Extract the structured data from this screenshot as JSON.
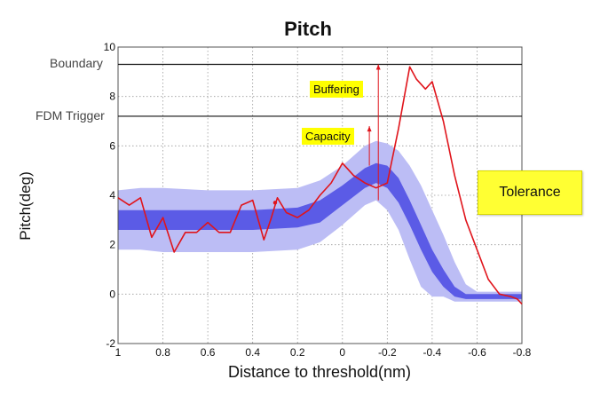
{
  "chart_data": {
    "type": "line",
    "title": "Pitch",
    "xlabel": "Distance to threshold(nm)",
    "ylabel": "Pitch(deg)",
    "x_reversed": true,
    "xlim": [
      1,
      -0.8
    ],
    "ylim": [
      -2,
      10
    ],
    "x_ticks": [
      "1",
      "0.8",
      "0.6",
      "0.4",
      "0.2",
      "0",
      "-0.2",
      "-0.4",
      "-0.6",
      "-0.8"
    ],
    "y_ticks": [
      "-2",
      "0",
      "2",
      "4",
      "6",
      "8",
      "10"
    ],
    "grid": true,
    "series": [
      {
        "color": "#e0141b",
        "x": [
          1,
          0.95,
          0.9,
          0.85,
          0.8,
          0.75,
          0.7,
          0.65,
          0.6,
          0.55,
          0.5,
          0.45,
          0.4,
          0.35,
          0.32,
          0.29,
          0.25,
          0.2,
          0.15,
          0.1,
          0.05,
          0,
          -0.05,
          -0.1,
          -0.15,
          -0.2,
          -0.25,
          -0.3,
          -0.33,
          -0.37,
          -0.4,
          -0.45,
          -0.5,
          -0.55,
          -0.6,
          -0.65,
          -0.7,
          -0.75,
          -0.78,
          -0.8
        ],
        "y": [
          3.9,
          3.6,
          3.9,
          2.3,
          3.1,
          1.7,
          2.5,
          2.5,
          2.9,
          2.5,
          2.5,
          3.6,
          3.8,
          2.2,
          3.0,
          3.9,
          3.3,
          3.1,
          3.4,
          4.0,
          4.5,
          5.3,
          4.8,
          4.5,
          4.3,
          4.5,
          6.7,
          9.2,
          8.7,
          8.3,
          8.6,
          7.0,
          4.8,
          3.0,
          1.8,
          0.6,
          0.0,
          -0.1,
          -0.2,
          -0.4
        ]
      }
    ],
    "bands": [
      {
        "name": "outer",
        "color": "#bcbdf5",
        "x": [
          1,
          0.9,
          0.8,
          0.6,
          0.4,
          0.2,
          0.1,
          0,
          -0.1,
          -0.15,
          -0.2,
          -0.25,
          -0.3,
          -0.35,
          -0.4,
          -0.45,
          -0.5,
          -0.55,
          -0.6,
          -0.65,
          -0.7,
          -0.75,
          -0.8
        ],
        "lower": [
          1.8,
          1.8,
          1.7,
          1.7,
          1.7,
          1.8,
          2.1,
          2.8,
          3.6,
          3.8,
          3.4,
          2.6,
          1.4,
          0.3,
          -0.1,
          -0.1,
          -0.3,
          -0.3,
          -0.3,
          -0.3,
          -0.3,
          -0.3,
          -0.3
        ],
        "upper": [
          4.2,
          4.3,
          4.3,
          4.2,
          4.2,
          4.3,
          4.6,
          5.2,
          6.0,
          6.2,
          6.1,
          5.8,
          5.2,
          4.4,
          3.4,
          2.4,
          1.3,
          0.4,
          0.1,
          0.1,
          0.1,
          0.1,
          0.1
        ]
      },
      {
        "name": "inner",
        "color": "#5b5be6",
        "x": [
          1,
          0.9,
          0.8,
          0.6,
          0.4,
          0.2,
          0.1,
          0,
          -0.1,
          -0.15,
          -0.2,
          -0.25,
          -0.3,
          -0.35,
          -0.4,
          -0.45,
          -0.5,
          -0.55,
          -0.6,
          -0.65,
          -0.7,
          -0.75,
          -0.8
        ],
        "lower": [
          2.6,
          2.6,
          2.6,
          2.6,
          2.6,
          2.7,
          2.9,
          3.6,
          4.3,
          4.5,
          4.3,
          3.7,
          2.8,
          1.8,
          0.9,
          0.3,
          -0.1,
          -0.2,
          -0.2,
          -0.2,
          -0.2,
          -0.2,
          -0.2
        ],
        "upper": [
          3.4,
          3.4,
          3.4,
          3.4,
          3.4,
          3.5,
          3.8,
          4.4,
          5.1,
          5.3,
          5.2,
          4.7,
          3.8,
          2.8,
          1.8,
          1.0,
          0.3,
          0.0,
          0.0,
          0.0,
          0.0,
          0.0,
          0.0
        ]
      }
    ],
    "isolated_points": [
      {
        "x": 0.3,
        "y": 3.7
      }
    ],
    "hlines": [
      {
        "label": "Boundary",
        "y": 9.3
      },
      {
        "label": "FDM Trigger",
        "y": 7.2
      }
    ],
    "annotations": [
      {
        "label": "Buffering",
        "arrow_x": -0.16,
        "arrow_y0": 3.8,
        "arrow_y1": 9.3
      },
      {
        "label": "Capacity",
        "arrow_x": -0.12,
        "arrow_y0": 5.2,
        "arrow_y1": 6.8
      }
    ],
    "callout": "Tolerance"
  }
}
